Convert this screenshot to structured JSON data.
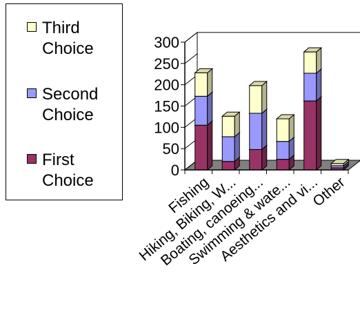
{
  "chart_data": {
    "type": "bar",
    "stacked": true,
    "three_d": true,
    "categories": [
      "Fishing",
      "Hiking, Biking, W...",
      "Boating, canoeing...",
      "Swimming & wate...",
      "Aesthetics and vi...",
      "Other"
    ],
    "series": [
      {
        "name": "First Choice",
        "values": [
          105,
          20,
          48,
          25,
          162,
          5
        ],
        "color": "#993366"
      },
      {
        "name": "Second Choice",
        "values": [
          68,
          58,
          85,
          42,
          65,
          5
        ],
        "color": "#9999ff"
      },
      {
        "name": "Third Choice",
        "values": [
          55,
          48,
          65,
          53,
          50,
          5
        ],
        "color": "#ffffcc"
      }
    ],
    "ylim": [
      0,
      300
    ],
    "yticks": [
      0,
      50,
      100,
      150,
      200,
      250,
      300
    ],
    "ytick_labels": [
      "0",
      "50",
      "100",
      "150",
      "200",
      "250",
      "300"
    ],
    "grid": false,
    "legend_position": "left",
    "title": "",
    "xlabel": "",
    "ylabel": ""
  },
  "legend": {
    "items": [
      {
        "label": "Third\nChoice",
        "color": "#ffffcc"
      },
      {
        "label": "Second\nChoice",
        "color": "#9999ff"
      },
      {
        "label": "First\nChoice",
        "color": "#993366"
      }
    ]
  }
}
